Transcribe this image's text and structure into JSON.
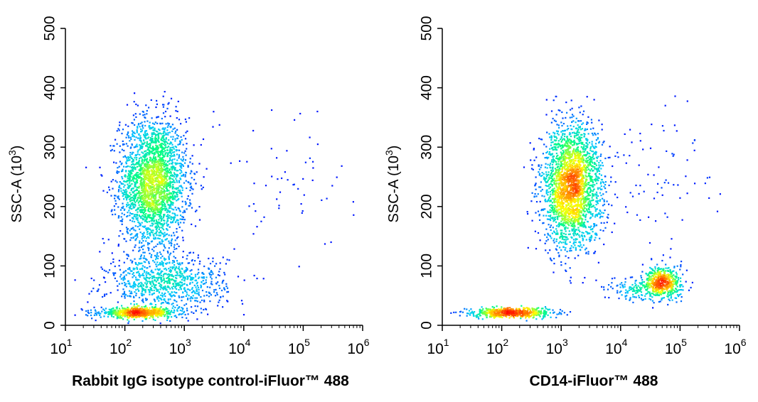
{
  "chart_data": [
    {
      "type": "scatter",
      "subtype": "flow-cytometry-density-dot-plot",
      "xlabel": "Rabbit IgG isotype control-iFluor™ 488",
      "ylabel": "SSC-A",
      "ylabel_unit": "(10",
      "ylabel_unit_exp": "3",
      "ylabel_unit_close": ")",
      "x_scale": "log",
      "xlim": [
        10,
        1000000
      ],
      "ylim": [
        0,
        500
      ],
      "x_ticks": [
        {
          "base": "10",
          "exp": "1"
        },
        {
          "base": "10",
          "exp": "2"
        },
        {
          "base": "10",
          "exp": "3"
        },
        {
          "base": "10",
          "exp": "4"
        },
        {
          "base": "10",
          "exp": "5"
        },
        {
          "base": "10",
          "exp": "6"
        }
      ],
      "y_ticks": [
        "0",
        "100",
        "200",
        "300",
        "400",
        "500"
      ],
      "grid": false,
      "color_scale": [
        "#0000ff",
        "#00c8ff",
        "#00ff80",
        "#ffff00",
        "#ff8000",
        "#ff0000"
      ],
      "populations": [
        {
          "x_center": 300,
          "y_center": 240,
          "x_spread_log": 0.28,
          "y_spread": 55,
          "count": 2600
        },
        {
          "x_center": 170,
          "y_center": 21,
          "x_spread_log": 0.32,
          "y_spread": 4,
          "count": 700
        },
        {
          "x_center": 500,
          "y_center": 70,
          "x_spread_log": 0.5,
          "y_spread": 25,
          "count": 900
        },
        {
          "x_center": 50000,
          "y_center": 250,
          "x_spread_log": 0.6,
          "y_spread": 60,
          "count": 60
        }
      ]
    },
    {
      "type": "scatter",
      "subtype": "flow-cytometry-density-dot-plot",
      "xlabel": "CD14-iFluor™ 488",
      "ylabel": "SSC-A",
      "ylabel_unit": "(10",
      "ylabel_unit_exp": "3",
      "ylabel_unit_close": ")",
      "x_scale": "log",
      "xlim": [
        10,
        1000000
      ],
      "ylim": [
        0,
        500
      ],
      "x_ticks": [
        {
          "base": "10",
          "exp": "1"
        },
        {
          "base": "10",
          "exp": "2"
        },
        {
          "base": "10",
          "exp": "3"
        },
        {
          "base": "10",
          "exp": "4"
        },
        {
          "base": "10",
          "exp": "5"
        },
        {
          "base": "10",
          "exp": "6"
        }
      ],
      "y_ticks": [
        "0",
        "100",
        "200",
        "300",
        "400",
        "500"
      ],
      "grid": false,
      "color_scale": [
        "#0000ff",
        "#00c8ff",
        "#00ff80",
        "#ffff00",
        "#ff8000",
        "#ff0000"
      ],
      "populations": [
        {
          "x_center": 1500,
          "y_center": 235,
          "x_spread_log": 0.25,
          "y_spread": 52,
          "count": 2600
        },
        {
          "x_center": 150,
          "y_center": 21,
          "x_spread_log": 0.35,
          "y_spread": 4,
          "count": 650
        },
        {
          "x_center": 50000,
          "y_center": 72,
          "x_spread_log": 0.15,
          "y_spread": 14,
          "count": 550
        },
        {
          "x_center": 20000,
          "y_center": 60,
          "x_spread_log": 0.3,
          "y_spread": 10,
          "count": 150
        },
        {
          "x_center": 40000,
          "y_center": 260,
          "x_spread_log": 0.5,
          "y_spread": 70,
          "count": 80
        }
      ]
    }
  ]
}
